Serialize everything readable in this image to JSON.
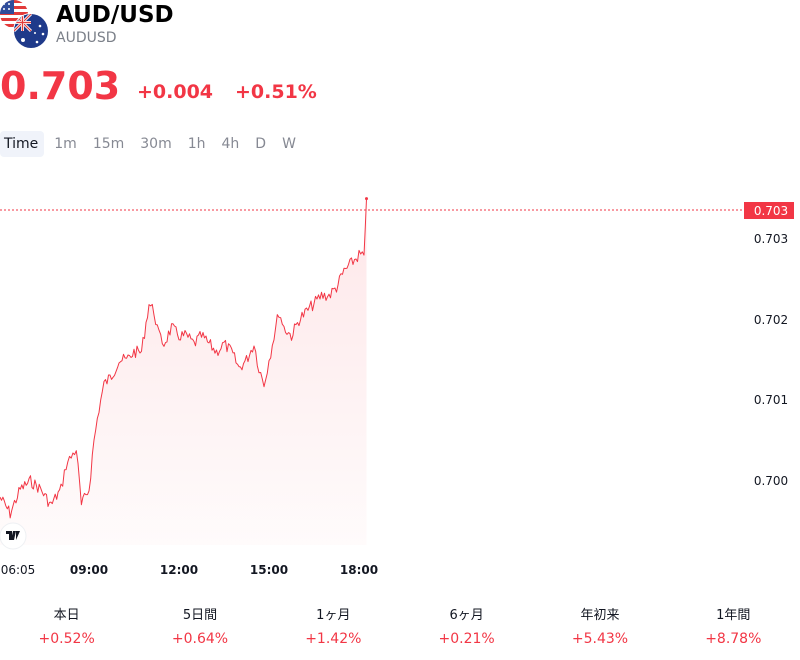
{
  "symbol": {
    "title": "AUD/USD",
    "subtitle": "AUDUSD"
  },
  "quote": {
    "price": "0.703",
    "change": "+0.004",
    "change_pct": "+0.51%",
    "color": "#f23645"
  },
  "timeframes": [
    "Time",
    "1m",
    "15m",
    "30m",
    "1h",
    "4h",
    "D",
    "W"
  ],
  "active_timeframe": "Time",
  "chart_data": {
    "type": "area",
    "x_ticks": [
      "06:05",
      "09:00",
      "12:00",
      "15:00",
      "18:00"
    ],
    "y_ticks": [
      "0.703",
      "0.702",
      "0.701",
      "0.700"
    ],
    "last_price_label": "0.703",
    "series": [
      {
        "x": [
          "06:05",
          "06:25",
          "06:45",
          "07:05",
          "07:25",
          "07:45",
          "08:05",
          "08:15",
          "08:25",
          "08:35",
          "08:45",
          "09:00",
          "09:10",
          "09:20",
          "09:30",
          "09:45",
          "10:00",
          "10:15",
          "10:30",
          "10:45",
          "11:00",
          "11:10",
          "11:20",
          "11:30",
          "11:45",
          "12:00",
          "12:15",
          "12:30",
          "12:45",
          "13:00",
          "13:15",
          "13:30",
          "13:45",
          "14:00",
          "14:15",
          "14:30",
          "14:40",
          "14:50",
          "15:00",
          "15:10",
          "15:20",
          "15:30",
          "15:45",
          "16:00",
          "16:15",
          "16:30",
          "16:45",
          "17:00",
          "17:15",
          "17:30",
          "17:45",
          "18:00",
          "18:10",
          "18:15"
        ],
        "values": [
          0.6998,
          0.6996,
          0.6999,
          0.7,
          0.6999,
          0.6997,
          0.6999,
          0.7002,
          0.7003,
          0.7004,
          0.6997,
          0.6999,
          0.7005,
          0.7009,
          0.7012,
          0.7013,
          0.7015,
          0.7015,
          0.7016,
          0.7016,
          0.7022,
          0.7021,
          0.7018,
          0.7017,
          0.7019,
          0.7018,
          0.7018,
          0.7017,
          0.7018,
          0.7017,
          0.7016,
          0.7017,
          0.7016,
          0.7014,
          0.7015,
          0.7017,
          0.7014,
          0.7012,
          0.7015,
          0.7018,
          0.7021,
          0.7019,
          0.7018,
          0.702,
          0.7021,
          0.7022,
          0.7023,
          0.7023,
          0.7024,
          0.7026,
          0.7027,
          0.7028,
          0.7028,
          0.7035
        ]
      }
    ]
  },
  "periods": [
    {
      "label": "本日",
      "value": "+0.52%"
    },
    {
      "label": "5日間",
      "value": "+0.64%"
    },
    {
      "label": "1ヶ月",
      "value": "+1.42%"
    },
    {
      "label": "6ヶ月",
      "value": "+0.21%"
    },
    {
      "label": "年初来",
      "value": "+5.43%"
    },
    {
      "label": "1年間",
      "value": "+8.78%"
    }
  ]
}
